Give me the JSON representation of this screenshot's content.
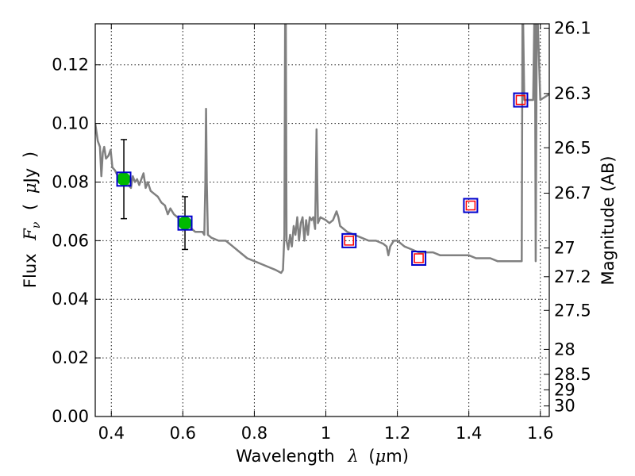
{
  "chart_data": {
    "type": "line",
    "title": "",
    "xlabel": {
      "prefix": "Wavelength",
      "symbol": "λ",
      "unit_open": "(",
      "unit_symbol": "μ",
      "unit_text": "m",
      "unit_close": ")"
    },
    "ylabel": {
      "prefix": "Flux",
      "symbol": "F",
      "subscript": "ν",
      "unit_open": "(",
      "unit_symbol": "μ",
      "unit_text": "Jy",
      "unit_close": ")"
    },
    "y2label": "Magnitude (AB)",
    "xlim": [
      0.355,
      1.625
    ],
    "ylim": [
      0.0,
      0.134
    ],
    "grid": true,
    "x_ticks": [
      {
        "value": 0.4,
        "label": "0.4"
      },
      {
        "value": 0.6,
        "label": "0.6"
      },
      {
        "value": 0.8,
        "label": "0.8"
      },
      {
        "value": 1.0,
        "label": "1"
      },
      {
        "value": 1.2,
        "label": "1.2"
      },
      {
        "value": 1.4,
        "label": "1.4"
      },
      {
        "value": 1.6,
        "label": "1.6"
      }
    ],
    "y_ticks": [
      {
        "value": 0.0,
        "label": "0.00"
      },
      {
        "value": 0.02,
        "label": "0.02"
      },
      {
        "value": 0.04,
        "label": "0.04"
      },
      {
        "value": 0.06,
        "label": "0.06"
      },
      {
        "value": 0.08,
        "label": "0.08"
      },
      {
        "value": 0.1,
        "label": "0.10"
      },
      {
        "value": 0.12,
        "label": "0.12"
      }
    ],
    "y2_ticks": [
      {
        "flux": 0.1325,
        "label": "26.1"
      },
      {
        "flux": 0.1102,
        "label": "26.3"
      },
      {
        "flux": 0.0917,
        "label": "26.5"
      },
      {
        "flux": 0.0762,
        "label": "26.7"
      },
      {
        "flux": 0.0575,
        "label": "27"
      },
      {
        "flux": 0.0477,
        "label": "27.2"
      },
      {
        "flux": 0.0362,
        "label": "27.5"
      },
      {
        "flux": 0.0229,
        "label": "28"
      },
      {
        "flux": 0.0144,
        "label": "28.5"
      },
      {
        "flux": 0.0091,
        "label": "29"
      },
      {
        "flux": 0.0036,
        "label": "30"
      }
    ],
    "series": [
      {
        "style": "line",
        "color": "#808080",
        "points": [
          [
            0.355,
            0.1
          ],
          [
            0.362,
            0.094
          ],
          [
            0.368,
            0.092
          ],
          [
            0.372,
            0.082
          ],
          [
            0.376,
            0.09
          ],
          [
            0.38,
            0.092
          ],
          [
            0.385,
            0.088
          ],
          [
            0.392,
            0.089
          ],
          [
            0.398,
            0.091
          ],
          [
            0.403,
            0.085
          ],
          [
            0.41,
            0.084
          ],
          [
            0.418,
            0.082
          ],
          [
            0.425,
            0.083
          ],
          [
            0.432,
            0.08
          ],
          [
            0.44,
            0.081
          ],
          [
            0.448,
            0.079
          ],
          [
            0.455,
            0.078
          ],
          [
            0.46,
            0.082
          ],
          [
            0.466,
            0.08
          ],
          [
            0.472,
            0.081
          ],
          [
            0.478,
            0.079
          ],
          [
            0.484,
            0.081
          ],
          [
            0.49,
            0.083
          ],
          [
            0.496,
            0.078
          ],
          [
            0.502,
            0.08
          ],
          [
            0.51,
            0.077
          ],
          [
            0.52,
            0.076
          ],
          [
            0.53,
            0.075
          ],
          [
            0.54,
            0.073
          ],
          [
            0.55,
            0.072
          ],
          [
            0.558,
            0.069
          ],
          [
            0.565,
            0.071
          ],
          [
            0.575,
            0.069
          ],
          [
            0.585,
            0.068
          ],
          [
            0.595,
            0.067
          ],
          [
            0.605,
            0.066
          ],
          [
            0.615,
            0.065
          ],
          [
            0.625,
            0.064
          ],
          [
            0.635,
            0.063
          ],
          [
            0.645,
            0.063
          ],
          [
            0.655,
            0.063
          ],
          [
            0.66,
            0.062
          ],
          [
            0.663,
            0.08
          ],
          [
            0.665,
            0.105
          ],
          [
            0.667,
            0.08
          ],
          [
            0.67,
            0.062
          ],
          [
            0.68,
            0.061
          ],
          [
            0.7,
            0.06
          ],
          [
            0.72,
            0.06
          ],
          [
            0.74,
            0.058
          ],
          [
            0.76,
            0.056
          ],
          [
            0.78,
            0.054
          ],
          [
            0.8,
            0.053
          ],
          [
            0.82,
            0.052
          ],
          [
            0.84,
            0.051
          ],
          [
            0.86,
            0.05
          ],
          [
            0.875,
            0.049
          ],
          [
            0.88,
            0.05
          ],
          [
            0.884,
            0.062
          ],
          [
            0.886,
            0.134
          ],
          [
            0.888,
            0.134
          ],
          [
            0.89,
            0.06
          ],
          [
            0.895,
            0.057
          ],
          [
            0.9,
            0.062
          ],
          [
            0.905,
            0.058
          ],
          [
            0.91,
            0.065
          ],
          [
            0.915,
            0.062
          ],
          [
            0.92,
            0.068
          ],
          [
            0.925,
            0.06
          ],
          [
            0.93,
            0.066
          ],
          [
            0.935,
            0.068
          ],
          [
            0.94,
            0.06
          ],
          [
            0.945,
            0.067
          ],
          [
            0.95,
            0.062
          ],
          [
            0.955,
            0.068
          ],
          [
            0.96,
            0.067
          ],
          [
            0.965,
            0.068
          ],
          [
            0.97,
            0.064
          ],
          [
            0.972,
            0.08
          ],
          [
            0.974,
            0.098
          ],
          [
            0.976,
            0.08
          ],
          [
            0.978,
            0.066
          ],
          [
            0.985,
            0.068
          ],
          [
            1.0,
            0.067
          ],
          [
            1.01,
            0.066
          ],
          [
            1.02,
            0.067
          ],
          [
            1.03,
            0.07
          ],
          [
            1.035,
            0.068
          ],
          [
            1.04,
            0.065
          ],
          [
            1.05,
            0.064
          ],
          [
            1.06,
            0.063
          ],
          [
            1.08,
            0.062
          ],
          [
            1.1,
            0.061
          ],
          [
            1.12,
            0.06
          ],
          [
            1.14,
            0.06
          ],
          [
            1.16,
            0.059
          ],
          [
            1.17,
            0.058
          ],
          [
            1.175,
            0.055
          ],
          [
            1.18,
            0.058
          ],
          [
            1.19,
            0.06
          ],
          [
            1.2,
            0.06
          ],
          [
            1.22,
            0.058
          ],
          [
            1.24,
            0.057
          ],
          [
            1.26,
            0.056
          ],
          [
            1.28,
            0.056
          ],
          [
            1.3,
            0.056
          ],
          [
            1.32,
            0.055
          ],
          [
            1.34,
            0.055
          ],
          [
            1.36,
            0.055
          ],
          [
            1.38,
            0.055
          ],
          [
            1.4,
            0.055
          ],
          [
            1.42,
            0.054
          ],
          [
            1.44,
            0.054
          ],
          [
            1.46,
            0.054
          ],
          [
            1.48,
            0.053
          ],
          [
            1.5,
            0.053
          ],
          [
            1.52,
            0.053
          ],
          [
            1.54,
            0.053
          ],
          [
            1.548,
            0.053
          ],
          [
            1.55,
            0.134
          ],
          [
            1.552,
            0.134
          ],
          [
            1.555,
            0.108
          ],
          [
            1.57,
            0.108
          ],
          [
            1.58,
            0.108
          ],
          [
            1.583,
            0.134
          ],
          [
            1.585,
            0.134
          ],
          [
            1.587,
            0.053
          ],
          [
            1.59,
            0.134
          ],
          [
            1.593,
            0.134
          ],
          [
            1.6,
            0.108
          ],
          [
            1.625,
            0.11
          ]
        ]
      },
      {
        "style": "markers",
        "marker": "circle",
        "color": "#00bb00",
        "points": [
          {
            "x": 0.435,
            "y": 0.081,
            "err": 0.0135
          },
          {
            "x": 0.606,
            "y": 0.066,
            "err": 0.009
          }
        ]
      },
      {
        "style": "markers",
        "marker": "square",
        "color": "#0000cc",
        "points": [
          {
            "x": 0.435,
            "y": 0.081
          },
          {
            "x": 0.606,
            "y": 0.066
          },
          {
            "x": 1.065,
            "y": 0.06
          },
          {
            "x": 1.26,
            "y": 0.054
          },
          {
            "x": 1.405,
            "y": 0.072
          },
          {
            "x": 1.545,
            "y": 0.108
          }
        ]
      },
      {
        "style": "markers",
        "marker": "square",
        "color": "#ff0000",
        "points": [
          {
            "x": 1.065,
            "y": 0.06
          },
          {
            "x": 1.26,
            "y": 0.054
          },
          {
            "x": 1.405,
            "y": 0.072
          },
          {
            "x": 1.545,
            "y": 0.108
          }
        ]
      }
    ]
  }
}
